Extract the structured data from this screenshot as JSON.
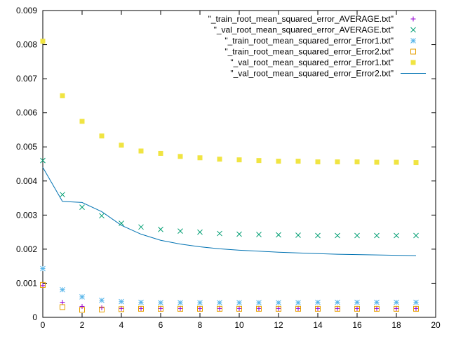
{
  "chart_data": {
    "type": "scatter",
    "title": "",
    "xlabel": "",
    "ylabel": "",
    "xlim": [
      0,
      20
    ],
    "ylim": [
      0,
      0.009
    ],
    "x_ticks": [
      0,
      2,
      4,
      6,
      8,
      10,
      12,
      14,
      16,
      18,
      20
    ],
    "y_ticks": [
      0,
      0.001,
      0.002,
      0.003,
      0.004,
      0.005,
      0.006,
      0.007,
      0.008,
      0.009
    ],
    "x_tick_labels": [
      "0",
      "2",
      "4",
      "6",
      "8",
      "10",
      "12",
      "14",
      "16",
      "18",
      "20"
    ],
    "y_tick_labels": [
      "0",
      "0.001",
      "0.002",
      "0.003",
      "0.004",
      "0.005",
      "0.006",
      "0.007",
      "0.008",
      "0.009"
    ],
    "grid": false,
    "legend_position": "top-right",
    "x": [
      0,
      1,
      2,
      3,
      4,
      5,
      6,
      7,
      8,
      9,
      10,
      11,
      12,
      13,
      14,
      15,
      16,
      17,
      18,
      19
    ],
    "series": [
      {
        "name": "\"_train_root_mean_squared_error_AVERAGE.txt\"",
        "marker": "plus",
        "color": "#9400d3",
        "values": [
          0.00093,
          0.00044,
          0.00032,
          0.00028,
          0.00026,
          0.00026,
          0.00026,
          0.00026,
          0.00026,
          0.00026,
          0.00026,
          0.00026,
          0.00026,
          0.00026,
          0.00026,
          0.00026,
          0.00026,
          0.00026,
          0.00026,
          0.00026
        ]
      },
      {
        "name": "\"_val_root_mean_squared_error_AVERAGE.txt\"",
        "marker": "cross",
        "color": "#009e73",
        "values": [
          0.0046,
          0.0036,
          0.00323,
          0.00298,
          0.00276,
          0.00265,
          0.00258,
          0.00253,
          0.0025,
          0.00246,
          0.00244,
          0.00243,
          0.00242,
          0.00241,
          0.0024,
          0.0024,
          0.0024,
          0.0024,
          0.0024,
          0.0024
        ]
      },
      {
        "name": "\"_train_root_mean_squared_error_Error1.txt\"",
        "marker": "star",
        "color": "#56b4e9",
        "values": [
          0.00143,
          0.00081,
          0.0006,
          0.0005,
          0.00046,
          0.00044,
          0.00043,
          0.00043,
          0.00043,
          0.00043,
          0.00043,
          0.00043,
          0.00043,
          0.00043,
          0.00044,
          0.00044,
          0.00044,
          0.00044,
          0.00044,
          0.00044
        ]
      },
      {
        "name": "\"_train_root_mean_squared_error_Error2.txt\"",
        "marker": "open-square",
        "color": "#e69f00",
        "values": [
          0.00095,
          0.0003,
          0.00022,
          0.00023,
          0.00024,
          0.00025,
          0.00025,
          0.00025,
          0.00025,
          0.00025,
          0.00025,
          0.00025,
          0.00025,
          0.00025,
          0.00025,
          0.00025,
          0.00025,
          0.00025,
          0.00025,
          0.00025
        ]
      },
      {
        "name": "\"_val_root_mean_squared_error_Error1.txt\"",
        "marker": "filled-square",
        "color": "#f0e442",
        "values": [
          0.0081,
          0.0065,
          0.00575,
          0.00532,
          0.00505,
          0.00488,
          0.00481,
          0.00472,
          0.00468,
          0.00464,
          0.00462,
          0.0046,
          0.00458,
          0.00458,
          0.00456,
          0.00456,
          0.00456,
          0.00455,
          0.00455,
          0.00454
        ]
      },
      {
        "name": "\"_val_root_mean_squared_error_Error2.txt\"",
        "marker": "line",
        "color": "#0072b2",
        "values": [
          0.0044,
          0.0034,
          0.00337,
          0.0031,
          0.0027,
          0.00244,
          0.00226,
          0.00215,
          0.00207,
          0.00201,
          0.00197,
          0.00194,
          0.00191,
          0.00189,
          0.00187,
          0.00185,
          0.00184,
          0.00183,
          0.00182,
          0.00181
        ]
      }
    ]
  }
}
